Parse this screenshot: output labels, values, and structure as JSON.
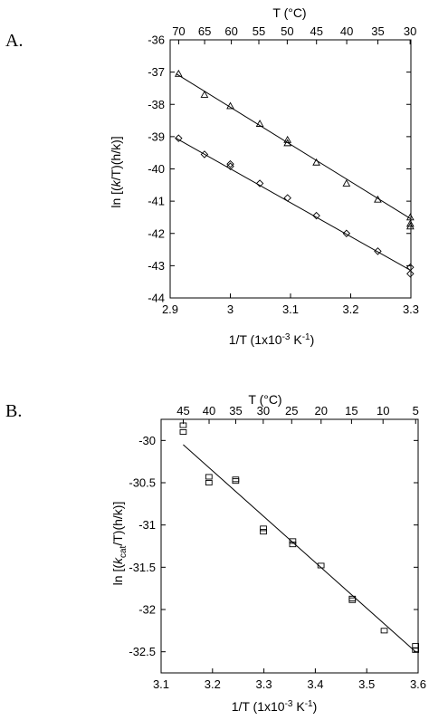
{
  "chart_data": [
    {
      "panel_label": "A.",
      "type": "scatter",
      "xlim": [
        2.9,
        3.3
      ],
      "ylim": [
        -44,
        -36
      ],
      "x_ticks": [
        2.9,
        3,
        3.1,
        3.2,
        3.3
      ],
      "x_tick_labels": [
        "2.9",
        "3",
        "3.1",
        "3.2",
        "3.3"
      ],
      "y_ticks": [
        -44,
        -43,
        -42,
        -41,
        -40,
        -39,
        -38,
        -37,
        -36
      ],
      "y_tick_labels": [
        "-44",
        "-43",
        "-42",
        "-41",
        "-40",
        "-39",
        "-38",
        "-37",
        "-36"
      ],
      "top_ticks_celsius": [
        70,
        65,
        60,
        55,
        50,
        45,
        40,
        35,
        30
      ],
      "top_tick_labels": [
        "70",
        "65",
        "60",
        "55",
        "50",
        "45",
        "40",
        "35",
        "30"
      ],
      "xlabel": "1/T (1x10-3 K-1)",
      "ylabel": "ln [(k/T)(h/k)]",
      "top_xlabel": "T (°C)",
      "grid": false,
      "series": [
        {
          "marker": "triangle",
          "points": [
            [
              2.914,
              -37.05
            ],
            [
              2.957,
              -37.7
            ],
            [
              3.0,
              -38.05
            ],
            [
              3.049,
              -38.6
            ],
            [
              3.095,
              -39.1
            ],
            [
              3.095,
              -39.2
            ],
            [
              3.143,
              -39.8
            ],
            [
              3.193,
              -40.45
            ],
            [
              3.245,
              -40.95
            ],
            [
              3.299,
              -41.5
            ],
            [
              3.299,
              -41.7
            ],
            [
              3.299,
              -41.78
            ]
          ],
          "fit": [
            [
              2.91,
              -37.05
            ],
            [
              3.3,
              -41.55
            ]
          ]
        },
        {
          "marker": "diamond",
          "points": [
            [
              2.914,
              -39.05
            ],
            [
              2.957,
              -39.55
            ],
            [
              3.0,
              -39.85
            ],
            [
              3.0,
              -39.92
            ],
            [
              3.049,
              -40.45
            ],
            [
              3.095,
              -40.9
            ],
            [
              3.143,
              -41.45
            ],
            [
              3.193,
              -42.0
            ],
            [
              3.245,
              -42.55
            ],
            [
              3.299,
              -43.05
            ],
            [
              3.299,
              -43.25
            ]
          ],
          "fit": [
            [
              2.91,
              -39.05
            ],
            [
              3.3,
              -43.15
            ]
          ]
        }
      ]
    },
    {
      "panel_label": "B.",
      "type": "scatter",
      "xlim": [
        3.1,
        3.6
      ],
      "ylim": [
        -32.75,
        -29.75
      ],
      "x_ticks": [
        3.1,
        3.2,
        3.3,
        3.4,
        3.5,
        3.6
      ],
      "x_tick_labels": [
        "3.1",
        "3.2",
        "3.3",
        "3.4",
        "3.5",
        "3.6"
      ],
      "y_ticks": [
        -32.5,
        -32,
        -31.5,
        -31,
        -30.5,
        -30
      ],
      "y_tick_labels": [
        "-32.5",
        "-32",
        "-31.5",
        "-31",
        "-30.5",
        "-30"
      ],
      "top_ticks_celsius": [
        45,
        40,
        35,
        30,
        25,
        20,
        15,
        10,
        5
      ],
      "top_tick_labels": [
        "45",
        "40",
        "35",
        "30",
        "25",
        "20",
        "15",
        "10",
        "5"
      ],
      "xlabel": "1/T (1x10-3 K-1)",
      "ylabel": "ln [(kcat/T)(h/k)]",
      "top_xlabel": "T (°C)",
      "grid": false,
      "series": [
        {
          "marker": "square",
          "points": [
            [
              3.143,
              -29.9
            ],
            [
              3.143,
              -29.82
            ],
            [
              3.193,
              -30.43
            ],
            [
              3.193,
              -30.5
            ],
            [
              3.245,
              -30.46
            ],
            [
              3.245,
              -30.48
            ],
            [
              3.299,
              -31.04
            ],
            [
              3.299,
              -31.08
            ],
            [
              3.356,
              -31.19
            ],
            [
              3.356,
              -31.23
            ],
            [
              3.411,
              -31.48
            ],
            [
              3.472,
              -31.87
            ],
            [
              3.472,
              -31.89
            ],
            [
              3.534,
              -32.25
            ],
            [
              3.595,
              -32.43
            ],
            [
              3.595,
              -32.48
            ]
          ],
          "fit": [
            [
              3.143,
              -30.05
            ],
            [
              3.595,
              -32.5
            ]
          ]
        }
      ]
    }
  ],
  "colors": {
    "ink": "#000000",
    "background": "#ffffff"
  }
}
